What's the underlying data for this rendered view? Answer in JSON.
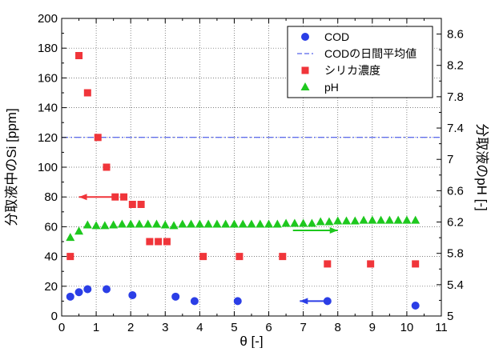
{
  "chart_data": {
    "type": "scatter",
    "xlabel": "θ [-]",
    "ylabel_left": "分取液中のSi [ppm]",
    "ylabel_right": "分取液のpH [-]",
    "xlim": [
      0,
      11
    ],
    "ylim_left": [
      0,
      200
    ],
    "ylim_right": [
      5.0,
      8.8
    ],
    "x_ticks": [
      "0",
      "1",
      "2",
      "3",
      "4",
      "5",
      "6",
      "7",
      "8",
      "9",
      "10",
      "11"
    ],
    "y_left_ticks": [
      "0",
      "20",
      "40",
      "60",
      "80",
      "100",
      "120",
      "140",
      "160",
      "180",
      "200"
    ],
    "y_right_ticks": [
      "5",
      "5.4",
      "5.8",
      "6.2",
      "6.6",
      "7",
      "7.4",
      "7.8",
      "8.2",
      "8.6"
    ],
    "legend_position": "top-right",
    "series": [
      {
        "name": "COD",
        "axis": "left",
        "marker": "circle",
        "color": "#2b3ee6",
        "x": [
          0.25,
          0.5,
          0.75,
          1.3,
          2.05,
          3.3,
          3.85,
          5.1,
          7.7,
          10.25
        ],
        "y": [
          13,
          16,
          18,
          18,
          14,
          13,
          10,
          10,
          10,
          7
        ]
      },
      {
        "name": "CODの日間平均値",
        "axis": "left",
        "style": "dash-dot line",
        "color": "#2b3ee6",
        "x": [
          0,
          11
        ],
        "y": [
          120,
          120
        ]
      },
      {
        "name": "シリカ濃度",
        "axis": "left",
        "marker": "square",
        "color": "#f0353a",
        "x": [
          0.25,
          0.5,
          0.75,
          1.05,
          1.3,
          1.55,
          1.8,
          2.05,
          2.3,
          2.55,
          2.8,
          3.05,
          4.1,
          5.15,
          6.4,
          7.7,
          8.95,
          10.25
        ],
        "y": [
          40,
          175,
          150,
          120,
          100,
          80,
          80,
          75,
          75,
          50,
          50,
          50,
          40,
          40,
          40,
          35,
          35,
          35
        ]
      },
      {
        "name": "pH",
        "axis": "right",
        "marker": "triangle",
        "color": "#1ec81e",
        "x": [
          0.25,
          0.5,
          0.75,
          1.0,
          1.25,
          1.5,
          1.75,
          2.0,
          2.25,
          2.5,
          2.75,
          3.0,
          3.25,
          3.5,
          3.75,
          4.0,
          4.25,
          4.5,
          4.75,
          5.0,
          5.25,
          5.5,
          5.75,
          6.0,
          6.25,
          6.5,
          6.75,
          7.0,
          7.25,
          7.5,
          7.75,
          8.0,
          8.25,
          8.5,
          8.75,
          9.0,
          9.25,
          9.5,
          9.75,
          10.0,
          10.25
        ],
        "y": [
          6.0,
          6.08,
          6.16,
          6.15,
          6.15,
          6.16,
          6.17,
          6.17,
          6.17,
          6.17,
          6.17,
          6.16,
          6.15,
          6.17,
          6.17,
          6.17,
          6.17,
          6.17,
          6.17,
          6.17,
          6.17,
          6.17,
          6.17,
          6.17,
          6.17,
          6.18,
          6.18,
          6.18,
          6.18,
          6.2,
          6.2,
          6.21,
          6.21,
          6.21,
          6.22,
          6.22,
          6.22,
          6.22,
          6.22,
          6.22,
          6.22
        ]
      }
    ],
    "annotations": [
      {
        "name": "arrow-to-left-axis",
        "color": "#f0353a",
        "from": [
          1.6,
          80
        ],
        "to": [
          0.5,
          80
        ]
      },
      {
        "name": "arrow-to-right-axis",
        "color": "#1ec81e",
        "from": [
          6.7,
          57.5
        ],
        "to": [
          8.0,
          57.5
        ]
      },
      {
        "name": "arrow-to-left-axis-cod",
        "color": "#2b3ee6",
        "from": [
          7.6,
          10
        ],
        "to": [
          6.9,
          10
        ]
      }
    ]
  }
}
